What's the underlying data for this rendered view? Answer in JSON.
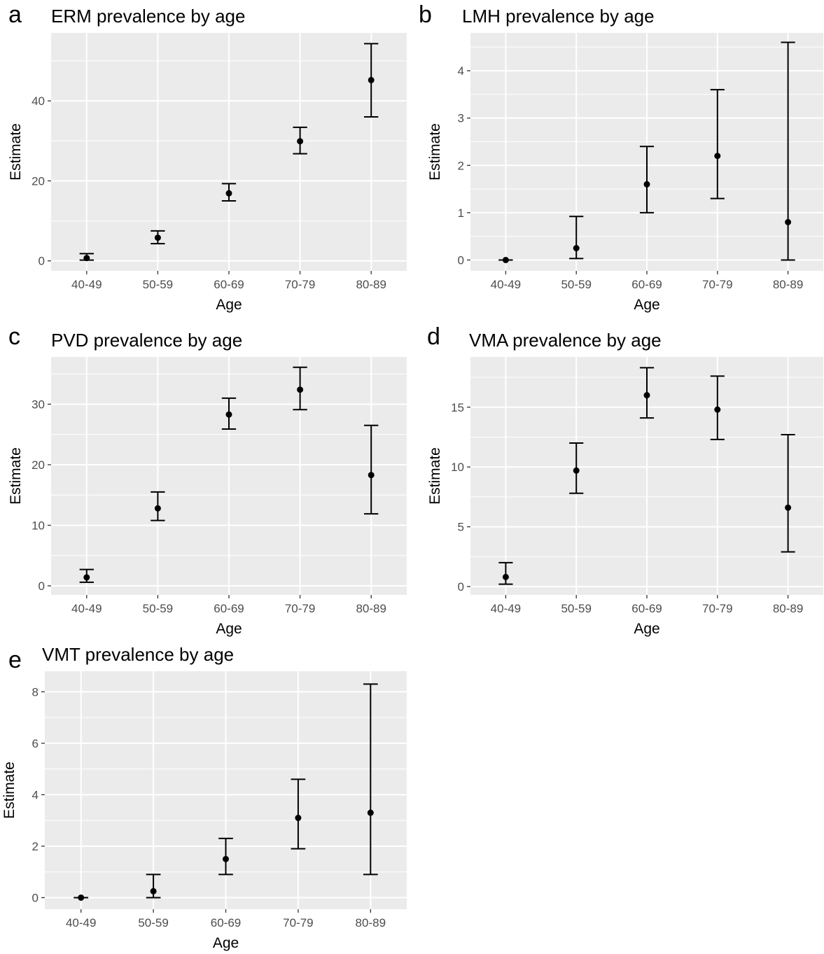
{
  "chart_data": [
    {
      "panel_letter": "a",
      "type": "errorbar",
      "title": "ERM prevalence by age",
      "xlabel": "Age",
      "ylabel": "Estimate",
      "categories": [
        "40-49",
        "50-59",
        "60-69",
        "70-79",
        "80-89"
      ],
      "values": [
        0.7,
        5.8,
        16.9,
        29.9,
        45.2
      ],
      "lower": [
        0.2,
        4.3,
        15.0,
        26.8,
        36.0
      ],
      "upper": [
        1.8,
        7.5,
        19.3,
        33.4,
        54.3
      ],
      "yticks": [
        0,
        20,
        40
      ],
      "ylim": [
        -2.5,
        57.0
      ],
      "grid": true
    },
    {
      "panel_letter": "b",
      "type": "errorbar",
      "title": "LMH prevalence by age",
      "xlabel": "Age",
      "ylabel": "Estimate",
      "categories": [
        "40-49",
        "50-59",
        "60-69",
        "70-79",
        "80-89"
      ],
      "values": [
        0.0,
        0.25,
        1.6,
        2.2,
        0.8
      ],
      "lower": [
        0.0,
        0.03,
        1.0,
        1.3,
        0.0
      ],
      "upper": [
        0.0,
        0.92,
        2.4,
        3.6,
        4.6
      ],
      "yticks": [
        0,
        1,
        2,
        3,
        4
      ],
      "ylim": [
        -0.23,
        4.8
      ],
      "grid": true
    },
    {
      "panel_letter": "c",
      "type": "errorbar",
      "title": "PVD prevalence by age",
      "xlabel": "Age",
      "ylabel": "Estimate",
      "categories": [
        "40-49",
        "50-59",
        "60-69",
        "70-79",
        "80-89"
      ],
      "values": [
        1.4,
        12.8,
        28.3,
        32.4,
        18.3
      ],
      "lower": [
        0.6,
        10.8,
        25.9,
        29.1,
        11.9
      ],
      "upper": [
        2.7,
        15.5,
        31.0,
        36.1,
        26.5
      ],
      "yticks": [
        0,
        10,
        20,
        30
      ],
      "ylim": [
        -1.5,
        37.8
      ],
      "grid": true
    },
    {
      "panel_letter": "d",
      "type": "errorbar",
      "title": "VMA prevalence by age",
      "xlabel": "Age",
      "ylabel": "Estimate",
      "categories": [
        "40-49",
        "50-59",
        "60-69",
        "70-79",
        "80-89"
      ],
      "values": [
        0.8,
        9.7,
        16.0,
        14.8,
        6.6
      ],
      "lower": [
        0.2,
        7.8,
        14.1,
        12.3,
        2.9
      ],
      "upper": [
        2.0,
        12.0,
        18.3,
        17.6,
        12.7
      ],
      "yticks": [
        0,
        5,
        10,
        15
      ],
      "ylim": [
        -0.7,
        19.2
      ],
      "grid": true
    },
    {
      "panel_letter": "e",
      "type": "errorbar",
      "title": "VMT prevalence by age",
      "xlabel": "Age",
      "ylabel": "Estimate",
      "categories": [
        "40-49",
        "50-59",
        "60-69",
        "70-79",
        "80-89"
      ],
      "values": [
        0.0,
        0.25,
        1.5,
        3.1,
        3.3
      ],
      "lower": [
        0.0,
        0.0,
        0.9,
        1.9,
        0.9
      ],
      "upper": [
        0.0,
        0.9,
        2.3,
        4.6,
        8.3
      ],
      "yticks": [
        0,
        2,
        4,
        6,
        8
      ],
      "ylim": [
        -0.45,
        8.8
      ],
      "grid": true
    }
  ]
}
